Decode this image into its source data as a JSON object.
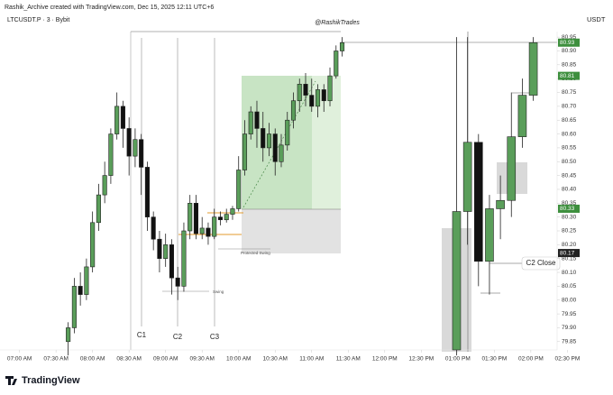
{
  "header": "Rashik_Archive created with TradingView.com, Dec 15, 2025 12:11 UTC+6",
  "logo": "TradingView",
  "chart_data": {
    "type": "candlestick",
    "title": "LTCUSDT.P · 3 · Bybit",
    "currency": "USDT",
    "watermark": "@RashikTrades",
    "up_color": "#5a9e5a",
    "down_color": "#111111",
    "ylim": [
      79.82,
      80.97
    ],
    "yticks": [
      80.95,
      {
        "value": 80.9,
        "label": "80.90"
      },
      80.85,
      {
        "value": 80.8,
        "label": "80.80"
      },
      80.75,
      {
        "value": 80.7,
        "label": "80.70"
      },
      80.65,
      {
        "value": 80.6,
        "label": "80.60"
      },
      80.55,
      {
        "value": 80.5,
        "label": "80.50"
      },
      80.45,
      {
        "value": 80.4,
        "label": "80.40"
      },
      80.35,
      {
        "value": 80.3,
        "label": "80.30"
      },
      80.25,
      {
        "value": 80.2,
        "label": "80.20"
      },
      80.15,
      {
        "value": 80.1,
        "label": "80.10"
      },
      80.05,
      {
        "value": 80,
        "label": "80.00"
      },
      79.95,
      {
        "value": 79.9,
        "label": "79.90"
      },
      79.85
    ],
    "xlim": [
      404,
      886
    ],
    "xticks": [
      {
        "value": 420,
        "label": "07:00 AM"
      },
      {
        "value": 450,
        "label": "07:30 AM"
      },
      {
        "value": 480,
        "label": "08:00 AM"
      },
      {
        "value": 510,
        "label": "08:30 AM"
      },
      {
        "value": 540,
        "label": "09:00 AM"
      },
      {
        "value": 570,
        "label": "09:30 AM"
      },
      {
        "value": 600,
        "label": "10:00 AM"
      },
      {
        "value": 630,
        "label": "10:30 AM"
      },
      {
        "value": 660,
        "label": "11:00 AM"
      },
      {
        "value": 690,
        "label": "11:30 AM"
      },
      {
        "value": 720,
        "label": "12:00 PM"
      },
      {
        "value": 750,
        "label": "12:30 PM"
      },
      {
        "value": 780,
        "label": "01:00 PM"
      },
      {
        "value": 810,
        "label": "01:30 PM"
      },
      {
        "value": 840,
        "label": "02:00 PM"
      },
      {
        "value": 870,
        "label": "02:30 PM"
      }
    ],
    "candles": {
      "x": [
        460,
        465,
        470,
        475,
        480,
        485,
        490,
        495,
        500,
        505,
        510,
        515,
        520,
        525,
        530,
        535,
        540,
        545,
        550,
        555,
        560,
        565,
        570,
        575,
        580,
        585,
        590,
        595,
        600,
        605,
        610,
        615,
        620,
        625,
        630,
        635,
        640,
        645,
        650,
        655,
        660,
        665,
        670,
        675,
        680,
        685
      ],
      "open": [
        79.85,
        79.9,
        80.05,
        80.02,
        80.12,
        80.28,
        80.38,
        80.45,
        80.6,
        80.7,
        80.62,
        80.52,
        80.58,
        80.48,
        80.3,
        80.22,
        80.15,
        80.2,
        80.08,
        80.05,
        80.25,
        80.35,
        80.24,
        80.26,
        80.23,
        80.3,
        80.29,
        80.31,
        80.33,
        80.47,
        80.6,
        80.68,
        80.62,
        80.55,
        80.6,
        80.5,
        80.56,
        80.65,
        80.72,
        80.78,
        80.74,
        80.7,
        80.76,
        80.72,
        80.81,
        80.9
      ],
      "high": [
        79.92,
        80.08,
        80.1,
        80.15,
        80.32,
        80.42,
        80.5,
        80.62,
        80.75,
        80.72,
        80.66,
        80.62,
        80.6,
        80.5,
        80.32,
        80.25,
        80.24,
        80.22,
        80.12,
        80.28,
        80.38,
        80.38,
        80.3,
        80.28,
        80.33,
        80.32,
        80.33,
        80.34,
        80.52,
        80.65,
        80.7,
        80.72,
        80.68,
        80.64,
        80.62,
        80.6,
        80.68,
        80.75,
        80.8,
        80.82,
        80.8,
        80.78,
        80.78,
        80.84,
        80.92,
        80.95
      ],
      "low": [
        79.8,
        79.88,
        79.98,
        80,
        80.1,
        80.25,
        80.35,
        80.42,
        80.58,
        80.55,
        80.45,
        80.48,
        80.38,
        80.25,
        80.18,
        80.1,
        80.12,
        80.02,
        80,
        80.03,
        80.22,
        80.22,
        80.22,
        80.2,
        80.22,
        80.27,
        80.28,
        80.29,
        80.32,
        80.45,
        80.58,
        80.55,
        80.5,
        80.52,
        80.45,
        80.48,
        80.54,
        80.62,
        80.68,
        80.7,
        80.68,
        80.66,
        80.68,
        80.7,
        80.8,
        80.88
      ],
      "close": [
        79.9,
        80.05,
        80.02,
        80.12,
        80.28,
        80.38,
        80.45,
        80.6,
        80.7,
        80.62,
        80.52,
        80.58,
        80.48,
        80.3,
        80.22,
        80.15,
        80.2,
        80.08,
        80.05,
        80.25,
        80.35,
        80.24,
        80.26,
        80.23,
        80.3,
        80.29,
        80.31,
        80.33,
        80.47,
        80.6,
        80.68,
        80.62,
        80.55,
        80.6,
        80.5,
        80.56,
        80.65,
        80.72,
        80.78,
        80.74,
        80.7,
        80.76,
        80.72,
        80.81,
        80.9,
        80.93
      ]
    },
    "overlay": {
      "x": [
        779,
        788,
        797,
        806,
        815,
        824,
        833,
        842
      ],
      "open": [
        79.82,
        80.32,
        80.57,
        80.14,
        80.33,
        80.36,
        80.59,
        80.74
      ],
      "high": [
        80.95,
        80.95,
        80.6,
        80.38,
        80.45,
        80.75,
        80.8,
        80.95
      ],
      "low": [
        79.8,
        80.2,
        80.05,
        80.02,
        80.22,
        80.3,
        80.55,
        80.72
      ],
      "close": [
        80.32,
        80.57,
        80.14,
        80.33,
        80.36,
        80.59,
        80.74,
        80.93
      ]
    },
    "price_markers": [
      {
        "value": 80.93,
        "color": "#3d8f3d"
      },
      {
        "value": 80.81,
        "color": "#3d8f3d"
      },
      {
        "value": 80.33,
        "color": "#3d8f3d"
      },
      {
        "value": 80.17,
        "color": "#222222"
      }
    ],
    "annotations": [
      "C1",
      "C2",
      "C3",
      "C2 Close",
      "Protected Swing",
      "Swing"
    ]
  }
}
